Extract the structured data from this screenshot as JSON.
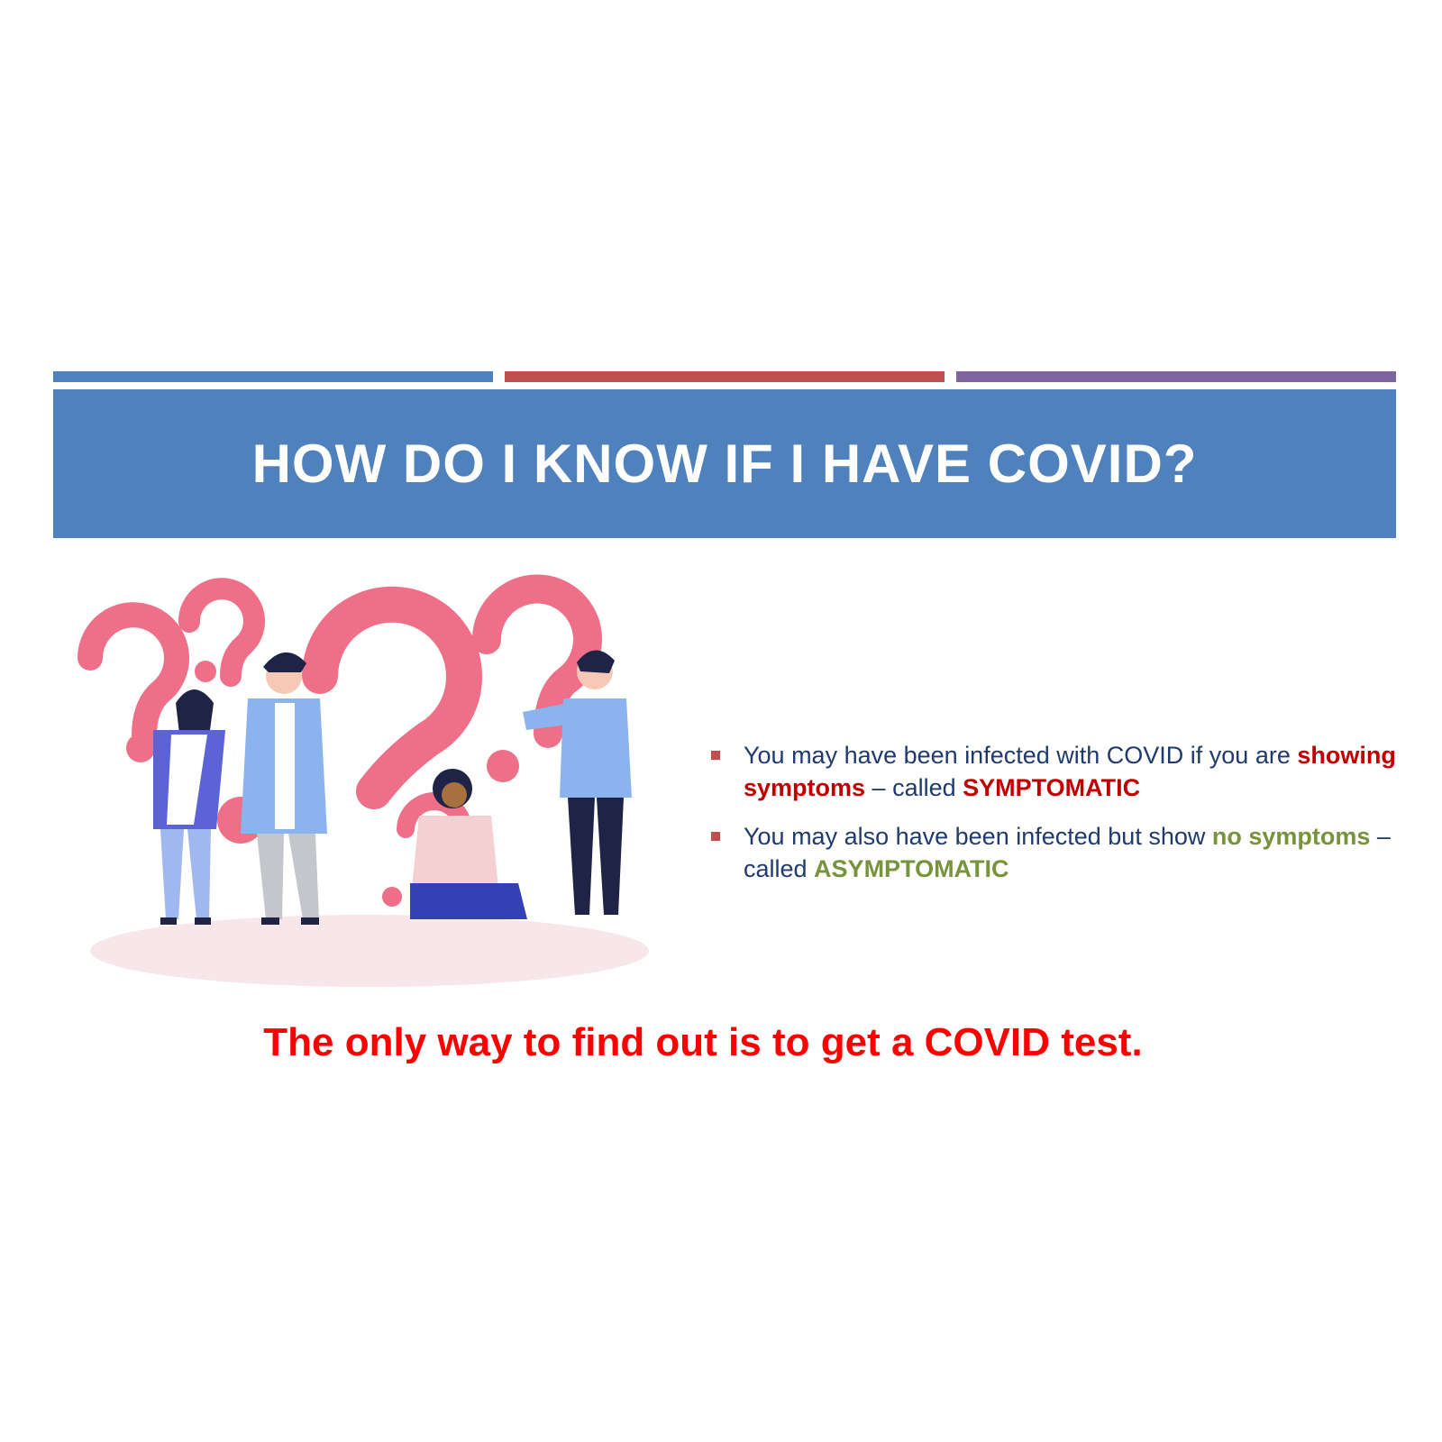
{
  "slide": {
    "title": "HOW DO I KNOW IF I HAVE COVID?",
    "bullets": [
      {
        "text_before": "You may have been infected with COVID if you are ",
        "emphasis": "showing symptoms",
        "text_middle": " – called ",
        "label": "SYMPTOMATIC"
      },
      {
        "text_before": "You may also have been infected but show ",
        "emphasis": "no symptoms",
        "text_middle": " – called ",
        "label": "ASYMPTOMATIC"
      }
    ],
    "footer": "The only way to find out is to get a COVID test."
  },
  "colors": {
    "accent_blue": "#4f81bd",
    "accent_red": "#c0504d",
    "accent_purple": "#8064a2",
    "banner": "#4f81bd",
    "body_text": "#1f3a6e",
    "symptom_red": "#c00000",
    "asymptom_green": "#77933c",
    "footer_red": "#ff0000",
    "question_pink": "#ee6f87"
  },
  "icons": {
    "illustration": "people-with-question-marks-illustration",
    "bullet": "square-bullet-icon"
  }
}
